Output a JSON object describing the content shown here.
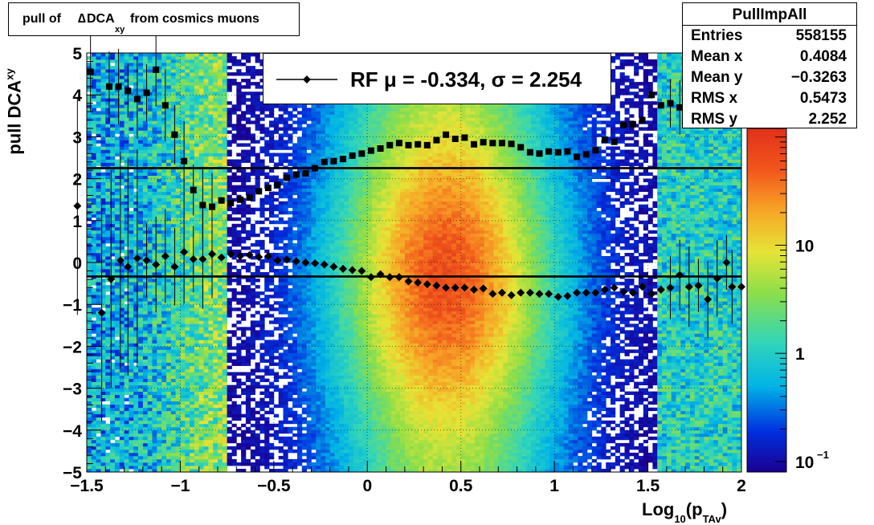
{
  "title": {
    "prefix": "pull of ",
    "delta": "∆",
    "main": " DCA",
    "sub": "xy",
    "suffix": "from cosmics muons"
  },
  "stats": {
    "name": "PullImpAll",
    "rows": [
      {
        "label": "Entries",
        "value": "558155"
      },
      {
        "label": "Mean x",
        "value": "0.4084"
      },
      {
        "label": "Mean y",
        "value": "−0.3263"
      },
      {
        "label": "RMS x",
        "value": "0.5473"
      },
      {
        "label": "RMS y",
        "value": "2.252"
      }
    ]
  },
  "legend": {
    "text": "RF μ = -0.334, σ =   2.254"
  },
  "axes": {
    "x_title_main": "Log",
    "x_title_sub1": "10",
    "x_title_open": "(p",
    "x_title_sub2": "TAv",
    "x_title_close": ")",
    "y_title_main": "pull DCA",
    "y_title_sub": "xy",
    "x_tick_labels": [
      "−1.5",
      "−1",
      "−0.5",
      "0",
      "0.5",
      "1",
      "1.5",
      "2"
    ],
    "y_tick_labels": [
      "−5",
      "−4",
      "−3",
      "−2",
      "−1",
      "0",
      "1",
      "2",
      "3",
      "4",
      "5"
    ],
    "z_tick_labels": [
      "10",
      "1",
      "10"
    ],
    "z_exp_label": "−1"
  },
  "chart_data": {
    "type": "heatmap",
    "x_range": [
      -1.5,
      2
    ],
    "y_range": [
      -5,
      5
    ],
    "z_scale": "log",
    "z_range": [
      0.08,
      120
    ],
    "grid": true,
    "legend_placement": "top-center",
    "stats_placement": "top-right",
    "hlines": [
      2.252,
      -0.334
    ],
    "rms_series": {
      "x": [
        -1.48,
        -1.38,
        -1.33,
        -1.28,
        -1.23,
        -1.18,
        -1.13,
        -1.08,
        -1.03,
        -0.98,
        -0.93,
        -0.88,
        -0.83,
        -0.78,
        -0.73,
        -0.68,
        -0.63,
        -0.58,
        -0.53,
        -0.48,
        -0.43,
        -0.38,
        -0.33,
        -0.28,
        -0.23,
        -0.18,
        -0.13,
        -0.08,
        -0.03,
        0.02,
        0.07,
        0.12,
        0.17,
        0.22,
        0.27,
        0.32,
        0.37,
        0.42,
        0.47,
        0.52,
        0.57,
        0.62,
        0.67,
        0.72,
        0.77,
        0.82,
        0.87,
        0.92,
        0.97,
        1.02,
        1.07,
        1.12,
        1.17,
        1.22,
        1.27,
        1.32,
        1.37,
        1.42,
        1.47,
        1.52,
        1.57,
        1.62,
        1.67,
        1.72,
        1.77
      ],
      "y": [
        4.55,
        4.2,
        4.2,
        4.1,
        3.9,
        4.05,
        4.6,
        3.75,
        3.05,
        2.42,
        1.73,
        1.37,
        1.33,
        1.48,
        1.42,
        1.5,
        1.55,
        1.7,
        1.78,
        1.85,
        2.02,
        2.1,
        2.13,
        2.25,
        2.4,
        2.42,
        2.47,
        2.55,
        2.6,
        2.67,
        2.72,
        2.8,
        2.85,
        2.8,
        2.82,
        2.8,
        2.92,
        3.05,
        2.95,
        2.98,
        2.82,
        2.87,
        2.85,
        2.85,
        2.83,
        2.75,
        2.63,
        2.6,
        2.65,
        2.63,
        2.65,
        2.52,
        2.58,
        2.68,
        2.93,
        2.88,
        3.28,
        3.3,
        3.4,
        4.0,
        3.75,
        3.8,
        3.7,
        4.1,
        3.95
      ]
    },
    "mean_series": {
      "x": [
        -1.55,
        -1.42,
        -1.37,
        -1.32,
        -1.28,
        -1.23,
        -1.18,
        -1.13,
        -1.08,
        -1.03,
        -0.98,
        -0.93,
        -0.88,
        -0.83,
        -0.78,
        -0.73,
        -0.68,
        -0.63,
        -0.58,
        -0.53,
        -0.48,
        -0.43,
        -0.38,
        -0.33,
        -0.28,
        -0.23,
        -0.18,
        -0.13,
        -0.08,
        -0.03,
        0.02,
        0.07,
        0.12,
        0.17,
        0.22,
        0.27,
        0.32,
        0.37,
        0.42,
        0.47,
        0.52,
        0.57,
        0.62,
        0.67,
        0.72,
        0.77,
        0.82,
        0.87,
        0.92,
        0.97,
        1.02,
        1.07,
        1.12,
        1.17,
        1.22,
        1.27,
        1.32,
        1.37,
        1.42,
        1.47,
        1.52,
        1.57,
        1.62,
        1.67,
        1.72,
        1.77,
        1.82,
        1.87,
        1.92,
        1.95,
        2.0
      ],
      "y": [
        1.35,
        -1.2,
        -0.4,
        0.05,
        -0.1,
        0.1,
        0.05,
        -0.05,
        0.15,
        -0.1,
        0.25,
        0.08,
        0.08,
        0.2,
        0.12,
        0.2,
        0.15,
        0.18,
        0.13,
        0.15,
        0.05,
        0.07,
        0.03,
        0.0,
        -0.02,
        -0.05,
        -0.1,
        -0.15,
        -0.18,
        -0.2,
        -0.35,
        -0.28,
        -0.35,
        -0.35,
        -0.45,
        -0.48,
        -0.52,
        -0.55,
        -0.6,
        -0.6,
        -0.6,
        -0.65,
        -0.62,
        -0.75,
        -0.72,
        -0.78,
        -0.72,
        -0.72,
        -0.75,
        -0.75,
        -0.82,
        -0.8,
        -0.72,
        -0.72,
        -0.72,
        -0.65,
        -0.6,
        -0.7,
        -0.72,
        -0.58,
        -0.75,
        -0.65,
        -0.6,
        -0.3,
        -0.58,
        -0.55,
        -0.88,
        -0.38,
        0.0,
        -0.58,
        -0.58
      ]
    }
  }
}
